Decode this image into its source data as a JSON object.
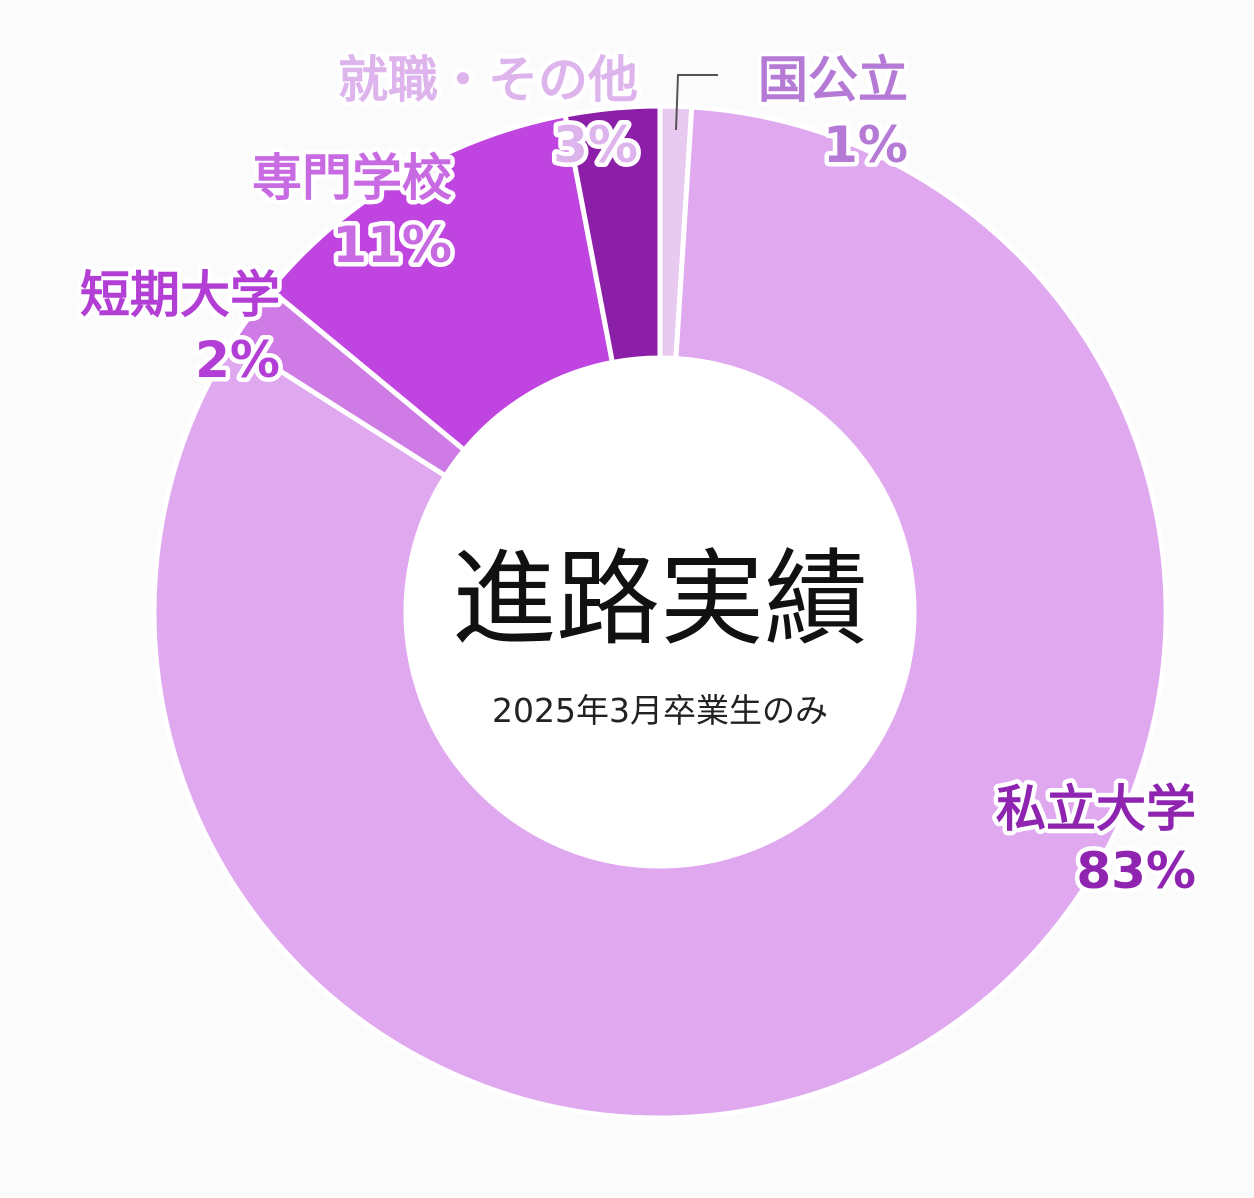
{
  "chart_data": {
    "type": "pie",
    "title": "進路実績",
    "subtitle": "2025年3月卒業生のみ",
    "slices": [
      {
        "label": "国公立",
        "value": 1,
        "value_label": "1%",
        "color": "#e8caf0",
        "label_color": "#b57ad6"
      },
      {
        "label": "私立大学",
        "value": 83,
        "value_label": "83%",
        "color": "#dfa8ef",
        "label_color": "#8e24b0"
      },
      {
        "label": "短期大学",
        "value": 2,
        "value_label": "2%",
        "color": "#cf7be5",
        "label_color": "#b23ed6"
      },
      {
        "label": "専門学校",
        "value": 11,
        "value_label": "11%",
        "color": "#c044e0",
        "label_color": "#c86be3"
      },
      {
        "label": "就職・その他",
        "value": 3,
        "value_label": "3%",
        "color": "#8c1fa8",
        "label_color": "#ddb5ec"
      }
    ]
  }
}
